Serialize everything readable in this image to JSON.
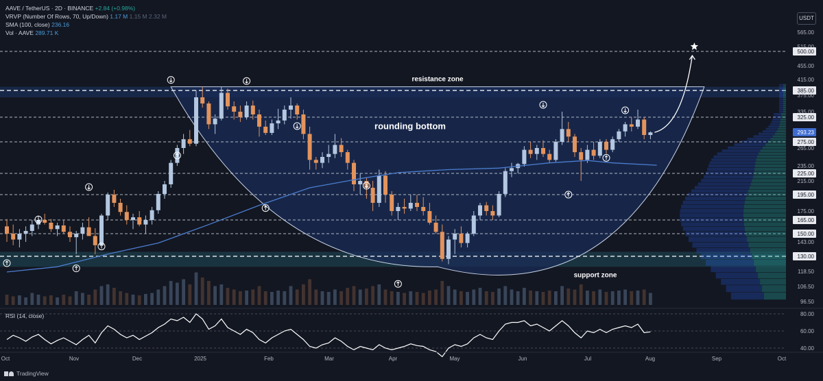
{
  "legend": {
    "symbol": "AAVE / TetherUS · 2D · BINANCE",
    "change": "+2.84 (+0.98%)",
    "vrvp_label": "VRVP (Number Of Rows, 70, Up/Down)",
    "vrvp_v1": "1.17 M",
    "vrvp_v2": "1.15 M",
    "vrvp_v3": "2.32 M",
    "sma_label": "SMA (100, close)",
    "sma_value": "236.16",
    "vol_label": "Vol · AAVE",
    "vol_value": "289.71 K"
  },
  "rsi_label": "RSI (14, close)",
  "currency": "USDT",
  "footer": "TradingView",
  "colors": {
    "background": "#131722",
    "up": "#b3c7e0",
    "down": "#e3935c",
    "sma": "#4c7dd0",
    "zone": "#1b3466",
    "bowl": "#1a2c55",
    "support_zone": "#1f4d5a",
    "last_price": "#3d6bd0"
  },
  "chart_data": {
    "type": "candlestick",
    "symbol": "AAVE / TetherUS",
    "timeframe": "2D",
    "last_price": 293.23,
    "price_ticks": [
      565.0,
      515.0,
      500.0,
      455.0,
      415.0,
      385.0,
      375.0,
      335.0,
      325.0,
      293.23,
      275.0,
      265.0,
      235.0,
      225.0,
      215.0,
      195.0,
      175.0,
      165.0,
      150.0,
      143.0,
      130.0,
      118.5,
      106.5,
      96.5
    ],
    "x_ticks": [
      "Oct",
      "Nov",
      "Dec",
      "2025",
      "Feb",
      "Mar",
      "Apr",
      "May",
      "Jun",
      "Jul",
      "Aug",
      "Sep",
      "Oct"
    ],
    "levels": [
      500,
      385,
      325,
      275,
      225,
      195,
      165,
      150,
      130
    ],
    "annotations": {
      "resistance": "resistance zone",
      "support": "support zone",
      "pattern": "rounding bottom"
    },
    "ohlc": [
      [
        158,
        166,
        143,
        150
      ],
      [
        150,
        160,
        140,
        145
      ],
      [
        145,
        155,
        138,
        150
      ],
      [
        150,
        158,
        143,
        153
      ],
      [
        153,
        165,
        148,
        160
      ],
      [
        160,
        170,
        155,
        165
      ],
      [
        165,
        172,
        160,
        162
      ],
      [
        162,
        166,
        152,
        155
      ],
      [
        155,
        162,
        148,
        159
      ],
      [
        159,
        165,
        150,
        152
      ],
      [
        152,
        158,
        143,
        147
      ],
      [
        147,
        153,
        132,
        150
      ],
      [
        150,
        162,
        145,
        157
      ],
      [
        157,
        168,
        150,
        148
      ],
      [
        148,
        156,
        132,
        140
      ],
      [
        140,
        172,
        138,
        170
      ],
      [
        170,
        198,
        165,
        195
      ],
      [
        195,
        202,
        180,
        185
      ],
      [
        185,
        190,
        170,
        174
      ],
      [
        174,
        182,
        160,
        165
      ],
      [
        165,
        172,
        155,
        168
      ],
      [
        168,
        175,
        158,
        160
      ],
      [
        160,
        170,
        150,
        165
      ],
      [
        165,
        180,
        160,
        176
      ],
      [
        176,
        200,
        172,
        196
      ],
      [
        196,
        215,
        190,
        210
      ],
      [
        210,
        245,
        205,
        240
      ],
      [
        240,
        270,
        235,
        265
      ],
      [
        265,
        290,
        255,
        280
      ],
      [
        280,
        298,
        268,
        272
      ],
      [
        272,
        385,
        268,
        370
      ],
      [
        370,
        395,
        345,
        355
      ],
      [
        355,
        360,
        300,
        310
      ],
      [
        310,
        330,
        290,
        322
      ],
      [
        322,
        395,
        318,
        380
      ],
      [
        380,
        390,
        340,
        348
      ],
      [
        348,
        360,
        320,
        335
      ],
      [
        335,
        350,
        315,
        325
      ],
      [
        325,
        360,
        320,
        350
      ],
      [
        350,
        362,
        320,
        330
      ],
      [
        330,
        340,
        285,
        305
      ],
      [
        305,
        318,
        288,
        292
      ],
      [
        292,
        320,
        288,
        312
      ],
      [
        312,
        342,
        300,
        318
      ],
      [
        318,
        350,
        310,
        340
      ],
      [
        340,
        370,
        322,
        350
      ],
      [
        350,
        355,
        320,
        330
      ],
      [
        330,
        340,
        280,
        290
      ],
      [
        290,
        305,
        230,
        245
      ],
      [
        245,
        250,
        230,
        240
      ],
      [
        240,
        258,
        232,
        250
      ],
      [
        250,
        270,
        240,
        255
      ],
      [
        255,
        290,
        248,
        270
      ],
      [
        270,
        282,
        250,
        258
      ],
      [
        258,
        262,
        230,
        240
      ],
      [
        240,
        245,
        200,
        210
      ],
      [
        210,
        225,
        195,
        215
      ],
      [
        215,
        220,
        190,
        205
      ],
      [
        205,
        215,
        175,
        185
      ],
      [
        185,
        230,
        180,
        222
      ],
      [
        222,
        228,
        185,
        195
      ],
      [
        195,
        200,
        170,
        175
      ],
      [
        175,
        185,
        165,
        180
      ],
      [
        180,
        190,
        172,
        178
      ],
      [
        178,
        195,
        175,
        185
      ],
      [
        185,
        195,
        175,
        180
      ],
      [
        180,
        192,
        170,
        175
      ],
      [
        175,
        185,
        160,
        162
      ],
      [
        162,
        170,
        150,
        152
      ],
      [
        152,
        160,
        126,
        128
      ],
      [
        128,
        148,
        124,
        145
      ],
      [
        145,
        155,
        132,
        150
      ],
      [
        150,
        158,
        138,
        142
      ],
      [
        142,
        152,
        138,
        150
      ],
      [
        150,
        175,
        148,
        170
      ],
      [
        170,
        185,
        165,
        182
      ],
      [
        182,
        186,
        170,
        175
      ],
      [
        175,
        182,
        165,
        170
      ],
      [
        170,
        200,
        168,
        196
      ],
      [
        196,
        232,
        192,
        228
      ],
      [
        228,
        240,
        220,
        232
      ],
      [
        232,
        240,
        225,
        238
      ],
      [
        238,
        268,
        234,
        262
      ],
      [
        262,
        275,
        248,
        255
      ],
      [
        255,
        270,
        245,
        265
      ],
      [
        265,
        278,
        250,
        255
      ],
      [
        255,
        262,
        240,
        245
      ],
      [
        245,
        280,
        242,
        275
      ],
      [
        275,
        335,
        270,
        300
      ],
      [
        300,
        315,
        275,
        285
      ],
      [
        285,
        290,
        250,
        258
      ],
      [
        258,
        265,
        215,
        245
      ],
      [
        245,
        270,
        240,
        262
      ],
      [
        262,
        275,
        245,
        252
      ],
      [
        252,
        280,
        248,
        275
      ],
      [
        275,
        280,
        255,
        262
      ],
      [
        262,
        285,
        258,
        280
      ],
      [
        280,
        300,
        275,
        295
      ],
      [
        295,
        315,
        285,
        310
      ],
      [
        310,
        325,
        295,
        305
      ],
      [
        305,
        340,
        300,
        320
      ],
      [
        320,
        325,
        280,
        288
      ],
      [
        288,
        295,
        280,
        293
      ]
    ],
    "volume": [
      30,
      25,
      28,
      22,
      35,
      30,
      25,
      28,
      22,
      30,
      25,
      40,
      35,
      30,
      45,
      55,
      60,
      50,
      40,
      35,
      30,
      28,
      32,
      35,
      45,
      55,
      70,
      65,
      75,
      60,
      95,
      80,
      70,
      55,
      60,
      50,
      45,
      40,
      42,
      45,
      55,
      40,
      38,
      42,
      40,
      55,
      45,
      60,
      75,
      45,
      40,
      38,
      45,
      40,
      50,
      55,
      45,
      48,
      55,
      60,
      45,
      40,
      38,
      35,
      40,
      38,
      35,
      42,
      45,
      70,
      55,
      45,
      40,
      38,
      45,
      50,
      40,
      38,
      48,
      55,
      45,
      40,
      50,
      42,
      40,
      38,
      42,
      40,
      55,
      48,
      45,
      60,
      42,
      40,
      45,
      38,
      40,
      42,
      45,
      40,
      42,
      45,
      35
    ],
    "sma100": [
      [
        0,
        118
      ],
      [
        8,
        122
      ],
      [
        16,
        132
      ],
      [
        24,
        142
      ],
      [
        32,
        160
      ],
      [
        40,
        182
      ],
      [
        48,
        205
      ],
      [
        56,
        218
      ],
      [
        62,
        226
      ],
      [
        70,
        230
      ],
      [
        78,
        232
      ],
      [
        86,
        240
      ],
      [
        92,
        244
      ],
      [
        96,
        240
      ],
      [
        103,
        236
      ]
    ],
    "rsi": {
      "levels": [
        80.0,
        60.0,
        40.0
      ],
      "values": [
        50,
        55,
        52,
        48,
        53,
        56,
        50,
        45,
        49,
        52,
        48,
        44,
        50,
        55,
        46,
        58,
        66,
        62,
        56,
        52,
        55,
        50,
        54,
        58,
        64,
        68,
        74,
        72,
        76,
        70,
        80,
        74,
        62,
        66,
        74,
        64,
        60,
        56,
        62,
        58,
        50,
        46,
        52,
        56,
        60,
        62,
        56,
        50,
        42,
        40,
        44,
        46,
        52,
        48,
        42,
        38,
        42,
        40,
        38,
        44,
        40,
        38,
        40,
        42,
        45,
        43,
        42,
        38,
        36,
        30,
        40,
        44,
        42,
        45,
        52,
        56,
        52,
        50,
        60,
        68,
        70,
        70,
        72,
        66,
        68,
        64,
        60,
        66,
        72,
        66,
        58,
        52,
        60,
        58,
        62,
        58,
        62,
        64,
        66,
        64,
        68,
        58,
        59
      ]
    }
  }
}
